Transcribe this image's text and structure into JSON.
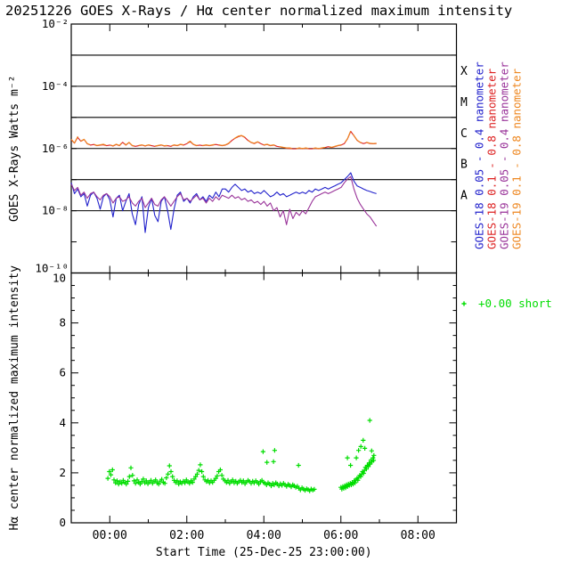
{
  "title": "20251226 GOES X-Rays / Hα center normalized maximum intensity",
  "xaxis": {
    "label": "Start Time (25-Dec-25 23:00:00)",
    "major_ticks": [
      {
        "t": 1,
        "label": "00:00"
      },
      {
        "t": 3,
        "label": "02:00"
      },
      {
        "t": 5,
        "label": "04:00"
      },
      {
        "t": 7,
        "label": "06:00"
      },
      {
        "t": 9,
        "label": "08:00"
      }
    ],
    "minor_ticks_t": [
      2,
      4,
      6,
      8
    ],
    "range_hours_after_start": [
      0,
      10
    ]
  },
  "chart_data": [
    {
      "type": "line",
      "name": "goes-xray-flux",
      "ylabel": "GOES X-Rays Watts m⁻²",
      "yticks": [
        {
          "exponent": -2,
          "label": "10⁻²"
        },
        {
          "exponent": -4,
          "label": "10⁻⁴"
        },
        {
          "exponent": -6,
          "label": "10⁻⁶"
        },
        {
          "exponent": -8,
          "label": "10⁻⁸"
        },
        {
          "exponent": -10,
          "label": "10⁻¹⁰"
        }
      ],
      "ylim_exponents": [
        -10,
        -2
      ],
      "grid_exponents": [
        -3,
        -4,
        -5,
        -6,
        -7,
        -8
      ],
      "edge_tick_exponents": [
        -3,
        -4,
        -5,
        -6,
        -7,
        -8,
        -9
      ],
      "flare_class_labels": [
        {
          "label": "X",
          "center_exponent": -3.5
        },
        {
          "label": "M",
          "center_exponent": -4.5
        },
        {
          "label": "C",
          "center_exponent": -5.5
        },
        {
          "label": "B",
          "center_exponent": -6.5
        },
        {
          "label": "A",
          "center_exponent": -7.5
        }
      ],
      "series": [
        {
          "name": "GOES-18 0.05 - 0.4 nanometer",
          "color": "#2222CC",
          "dash": null,
          "t0": 0,
          "dt": 0.0834,
          "log10_watts": [
            -7.1,
            -7.45,
            -7.3,
            -7.55,
            -7.45,
            -7.85,
            -7.5,
            -7.4,
            -7.6,
            -7.95,
            -7.55,
            -7.45,
            -7.65,
            -8.2,
            -7.6,
            -7.5,
            -8.0,
            -7.7,
            -7.45,
            -8.1,
            -8.45,
            -7.8,
            -7.55,
            -8.7,
            -7.9,
            -7.6,
            -8.15,
            -8.35,
            -7.7,
            -7.55,
            -8.0,
            -8.6,
            -7.95,
            -7.5,
            -7.4,
            -7.7,
            -7.6,
            -7.75,
            -7.55,
            -7.45,
            -7.65,
            -7.55,
            -7.7,
            -7.5,
            -7.6,
            -7.4,
            -7.55,
            -7.3,
            -7.3,
            -7.4,
            -7.25,
            -7.15,
            -7.25,
            -7.35,
            -7.3,
            -7.4,
            -7.35,
            -7.45,
            -7.4,
            -7.45,
            -7.35,
            -7.45,
            -7.55,
            -7.5,
            -7.4,
            -7.5,
            -7.45,
            -7.55,
            -7.5,
            -7.45,
            -7.4,
            -7.45,
            -7.4,
            -7.45,
            -7.35,
            -7.4,
            -7.3,
            -7.35,
            -7.3,
            -7.25,
            -7.3,
            -7.25,
            -7.2,
            -7.15,
            -7.1,
            -7.0,
            -6.9,
            -6.78,
            -7.05,
            -7.2,
            -7.25,
            -7.3,
            -7.35,
            -7.38,
            -7.42,
            -7.45
          ]
        },
        {
          "name": "GOES-18 0.1 - 0.8 nanometer",
          "color": "#DD2222",
          "dash": null,
          "t0": 0,
          "dt": 0.0834,
          "log10_watts": [
            -5.72,
            -5.83,
            -5.64,
            -5.77,
            -5.71,
            -5.85,
            -5.89,
            -5.87,
            -5.91,
            -5.89,
            -5.88,
            -5.91,
            -5.89,
            -5.92,
            -5.87,
            -5.91,
            -5.8,
            -5.89,
            -5.81,
            -5.91,
            -5.93,
            -5.91,
            -5.89,
            -5.92,
            -5.89,
            -5.91,
            -5.93,
            -5.91,
            -5.89,
            -5.92,
            -5.91,
            -5.93,
            -5.89,
            -5.91,
            -5.87,
            -5.89,
            -5.84,
            -5.78,
            -5.87,
            -5.91,
            -5.89,
            -5.91,
            -5.89,
            -5.91,
            -5.89,
            -5.87,
            -5.89,
            -5.91,
            -5.89,
            -5.84,
            -5.74,
            -5.67,
            -5.62,
            -5.59,
            -5.64,
            -5.74,
            -5.81,
            -5.84,
            -5.79,
            -5.84,
            -5.89,
            -5.87,
            -5.91,
            -5.89,
            -5.93,
            -5.95,
            -5.97,
            -5.99,
            -6.0,
            -6.01,
            -6.01,
            -5.99,
            -6.01,
            -5.99,
            -6.01,
            -6.01,
            -5.99,
            -6.01,
            -5.99,
            -5.97,
            -5.94,
            -5.97,
            -5.94,
            -5.91,
            -5.89,
            -5.84,
            -5.69,
            -5.45,
            -5.59,
            -5.74,
            -5.81,
            -5.84,
            -5.81,
            -5.84,
            -5.85,
            -5.84
          ]
        },
        {
          "name": "GOES-19 0.05 - 0.4 nanometer",
          "color": "#993399",
          "dash": null,
          "t0": 0,
          "dt": 0.0834,
          "log10_watts": [
            -7.15,
            -7.35,
            -7.25,
            -7.5,
            -7.4,
            -7.6,
            -7.45,
            -7.4,
            -7.55,
            -7.65,
            -7.5,
            -7.45,
            -7.55,
            -7.75,
            -7.6,
            -7.55,
            -7.7,
            -7.65,
            -7.55,
            -7.75,
            -7.85,
            -7.7,
            -7.6,
            -7.9,
            -7.75,
            -7.6,
            -7.8,
            -7.85,
            -7.65,
            -7.55,
            -7.7,
            -7.85,
            -7.7,
            -7.55,
            -7.45,
            -7.65,
            -7.6,
            -7.7,
            -7.6,
            -7.5,
            -7.65,
            -7.6,
            -7.75,
            -7.6,
            -7.7,
            -7.55,
            -7.65,
            -7.5,
            -7.55,
            -7.6,
            -7.5,
            -7.6,
            -7.55,
            -7.65,
            -7.6,
            -7.7,
            -7.65,
            -7.75,
            -7.7,
            -7.8,
            -7.7,
            -7.85,
            -7.75,
            -8.0,
            -7.9,
            -8.2,
            -8.0,
            -8.45,
            -7.95,
            -8.25,
            -8.05,
            -8.15,
            -8.0,
            -8.1,
            -7.9,
            -7.7,
            -7.55,
            -7.5,
            -7.45,
            -7.4,
            -7.45,
            -7.4,
            -7.35,
            -7.3,
            -7.25,
            -7.1,
            -6.98,
            -6.9,
            -7.3,
            -7.6,
            -7.8,
            -7.95,
            -8.1,
            -8.2,
            -8.35,
            -8.5
          ]
        },
        {
          "name": "GOES-19 0.1 - 0.8 nanometer",
          "color": "#EE8822",
          "dash": [
            14,
            5
          ],
          "t0": 0,
          "dt": 0.0834,
          "log10_watts": [
            -5.7,
            -5.82,
            -5.62,
            -5.76,
            -5.7,
            -5.84,
            -5.88,
            -5.86,
            -5.9,
            -5.88,
            -5.86,
            -5.9,
            -5.88,
            -5.91,
            -5.86,
            -5.9,
            -5.78,
            -5.88,
            -5.8,
            -5.9,
            -5.92,
            -5.9,
            -5.88,
            -5.91,
            -5.88,
            -5.9,
            -5.92,
            -5.9,
            -5.88,
            -5.91,
            -5.9,
            -5.92,
            -5.88,
            -5.9,
            -5.86,
            -5.88,
            -5.83,
            -5.76,
            -5.86,
            -5.9,
            -5.88,
            -5.9,
            -5.88,
            -5.9,
            -5.88,
            -5.86,
            -5.88,
            -5.9,
            -5.88,
            -5.83,
            -5.73,
            -5.66,
            -5.6,
            -5.58,
            -5.63,
            -5.73,
            -5.8,
            -5.83,
            -5.78,
            -5.83,
            -5.88,
            -5.86,
            -5.9,
            -5.88,
            -5.92,
            -5.94,
            -5.96,
            -5.98,
            -5.98,
            -6.0,
            -6.0,
            -5.98,
            -6.0,
            -5.98,
            -6.0,
            -6.0,
            -5.98,
            -6.0,
            -5.98,
            -5.96,
            -5.93,
            -5.96,
            -5.93,
            -5.9,
            -5.88,
            -5.83,
            -5.68,
            -5.43,
            -5.58,
            -5.73,
            -5.8,
            -5.83,
            -5.8,
            -5.83,
            -5.84,
            -5.83
          ]
        }
      ]
    },
    {
      "type": "scatter",
      "name": "halpha-intensity",
      "ylabel": "Hα center normalized maximum intensity",
      "yticks": [
        0,
        2,
        4,
        6,
        8,
        10
      ],
      "ylim": [
        0,
        10
      ],
      "minor_tick_step": 0.5,
      "marker": "+",
      "color": "#00DD00",
      "legend_label": "+0.00 short",
      "clusters": [
        {
          "t0": 0.95,
          "dt": 0.04,
          "values": [
            1.78,
            2.05,
            1.92,
            2.12,
            1.72,
            1.6,
            1.68,
            1.55,
            1.64,
            1.58,
            1.7,
            1.62,
            1.55,
            1.66,
            1.85,
            2.2,
            1.9,
            1.68,
            1.58,
            1.72,
            1.62,
            1.55,
            1.65,
            1.75,
            1.6,
            1.68,
            1.56,
            1.63,
            1.7,
            1.58,
            1.65,
            1.72,
            1.6,
            1.55,
            1.67,
            1.74,
            1.62,
            1.58,
            1.8,
            1.95,
            2.28,
            2.05,
            1.85,
            1.7,
            1.62,
            1.68,
            1.55,
            1.64,
            1.58,
            1.66,
            1.6,
            1.72,
            1.64,
            1.58,
            1.68,
            1.62,
            1.75,
            1.85,
            1.95,
            2.1,
            2.32,
            2.05,
            1.85,
            1.72,
            1.65,
            1.7,
            1.6,
            1.68,
            1.62,
            1.7,
            1.78,
            1.88,
            2.05,
            2.12,
            1.9,
            1.75,
            1.68,
            1.62,
            1.7,
            1.58,
            1.65,
            1.72,
            1.6,
            1.66,
            1.58,
            1.64,
            1.7,
            1.62,
            1.68,
            1.56,
            1.63,
            1.7,
            1.65,
            1.58,
            1.66,
            1.6,
            1.68,
            1.62,
            1.55,
            1.65,
            1.7,
            1.62,
            1.58,
            1.52,
            1.6,
            1.55,
            1.48,
            1.58,
            1.52,
            1.6,
            1.55,
            1.48,
            1.56,
            1.5,
            1.58,
            1.52,
            1.46,
            1.54,
            1.5,
            1.44,
            1.52,
            1.48,
            1.42,
            1.46,
            1.38,
            1.32,
            1.4,
            1.35,
            1.3,
            1.36,
            1.33,
            1.28,
            1.35,
            1.31,
            1.34
          ]
        },
        {
          "t0": 7.0,
          "dt": 0.0245,
          "values": [
            1.42,
            1.35,
            1.45,
            1.38,
            1.48,
            1.4,
            1.52,
            1.45,
            1.55,
            1.5,
            1.58,
            1.52,
            1.62,
            1.55,
            1.68,
            1.6,
            1.72,
            1.78,
            1.7,
            1.82,
            1.9,
            1.85,
            1.95,
            2.05,
            1.98,
            2.1,
            2.22,
            2.15,
            2.3,
            2.25,
            2.4,
            2.35,
            2.52,
            2.45,
            2.6,
            2.7
          ]
        }
      ],
      "outlier_points_t_v": [
        [
          4.98,
          2.85
        ],
        [
          5.08,
          2.42
        ],
        [
          5.25,
          2.45
        ],
        [
          5.28,
          2.9
        ],
        [
          5.9,
          2.3
        ],
        [
          7.17,
          2.6
        ],
        [
          7.25,
          2.3
        ],
        [
          7.4,
          2.6
        ],
        [
          7.46,
          2.9
        ],
        [
          7.52,
          3.05
        ],
        [
          7.58,
          3.3
        ],
        [
          7.62,
          2.98
        ],
        [
          7.75,
          4.1
        ],
        [
          7.8,
          2.88
        ],
        [
          7.85,
          2.5
        ]
      ]
    }
  ],
  "colors": {
    "frame": "#000000",
    "text": "#000000",
    "background": "#FFFFFF",
    "goes18_short": "#2222CC",
    "goes18_long": "#DD2222",
    "goes19_short": "#993399",
    "goes19_long": "#EE8822",
    "halpha": "#00DD00"
  }
}
